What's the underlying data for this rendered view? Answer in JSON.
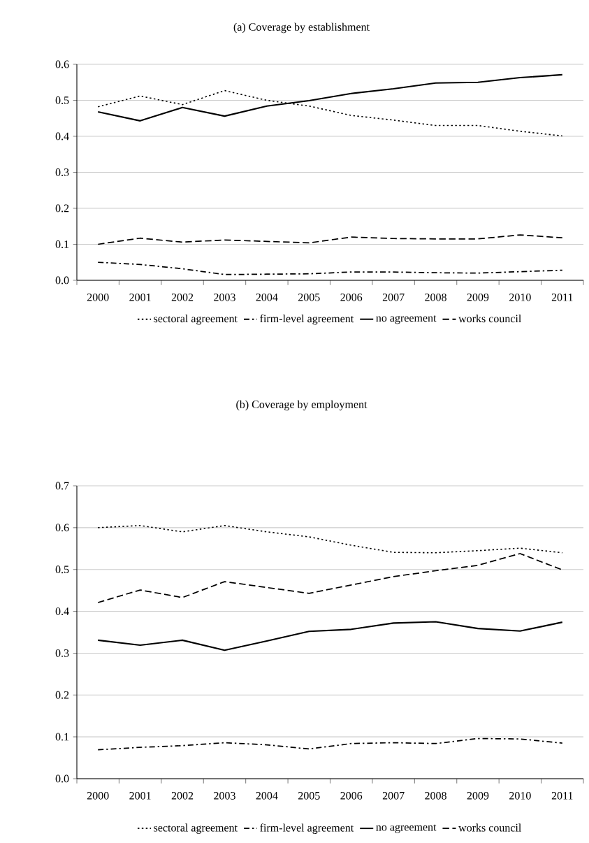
{
  "chart_data": [
    {
      "type": "line",
      "title": "(a)   Coverage by establishment",
      "categories": [
        "2000",
        "2001",
        "2002",
        "2003",
        "2004",
        "2005",
        "2006",
        "2007",
        "2008",
        "2009",
        "2010",
        "2011"
      ],
      "series": [
        {
          "name": "sectoral agreement",
          "color": "#000000",
          "line_style": "dotted",
          "values": [
            0.482,
            0.512,
            0.488,
            0.527,
            0.5,
            0.484,
            0.458,
            0.445,
            0.43,
            0.43,
            0.414,
            0.401
          ]
        },
        {
          "name": "firm-level agreement",
          "color": "#000000",
          "line_style": "dashdot",
          "values": [
            0.05,
            0.044,
            0.032,
            0.016,
            0.017,
            0.018,
            0.023,
            0.023,
            0.021,
            0.02,
            0.024,
            0.028
          ]
        },
        {
          "name": "no agreement",
          "color": "#000000",
          "line_style": "solid",
          "values": [
            0.468,
            0.443,
            0.48,
            0.456,
            0.484,
            0.499,
            0.519,
            0.532,
            0.548,
            0.55,
            0.563,
            0.571
          ]
        },
        {
          "name": "works council",
          "color": "#000000",
          "line_style": "dashed",
          "values": [
            0.1,
            0.117,
            0.106,
            0.112,
            0.108,
            0.104,
            0.12,
            0.116,
            0.115,
            0.115,
            0.126,
            0.118
          ]
        }
      ],
      "ylim": [
        0,
        0.6
      ],
      "yticks": [
        {
          "value": 0,
          "label": "0.0"
        },
        0.1,
        0.2,
        0.3,
        0.4,
        0.5,
        0.6
      ],
      "grid": "y",
      "legend": "bottom"
    },
    {
      "type": "line",
      "title": "(b) Coverage by employment",
      "categories": [
        "2000",
        "2001",
        "2002",
        "2003",
        "2004",
        "2005",
        "2006",
        "2007",
        "2008",
        "2009",
        "2010",
        "2011"
      ],
      "series": [
        {
          "name": "sectoral agreement",
          "color": "#000000",
          "line_style": "dotted",
          "values": [
            0.6,
            0.605,
            0.59,
            0.605,
            0.59,
            0.578,
            0.558,
            0.541,
            0.54,
            0.545,
            0.551,
            0.54
          ]
        },
        {
          "name": "firm-level agreement",
          "color": "#000000",
          "line_style": "dashdot",
          "values": [
            0.069,
            0.075,
            0.079,
            0.086,
            0.081,
            0.071,
            0.084,
            0.086,
            0.084,
            0.096,
            0.095,
            0.085
          ]
        },
        {
          "name": "no agreement",
          "color": "#000000",
          "line_style": "solid",
          "values": [
            0.331,
            0.319,
            0.331,
            0.307,
            0.329,
            0.352,
            0.357,
            0.372,
            0.375,
            0.359,
            0.353,
            0.374
          ]
        },
        {
          "name": "works council",
          "color": "#000000",
          "line_style": "dashed",
          "values": [
            0.421,
            0.451,
            0.433,
            0.471,
            0.457,
            0.443,
            0.463,
            0.483,
            0.497,
            0.51,
            0.538,
            0.499
          ]
        }
      ],
      "ylim": [
        0,
        0.7
      ],
      "yticks": [
        {
          "value": 0,
          "label": "0.0"
        },
        0.1,
        0.2,
        0.3,
        0.4,
        0.5,
        0.6,
        0.7
      ],
      "grid": "y",
      "legend": "bottom"
    }
  ]
}
